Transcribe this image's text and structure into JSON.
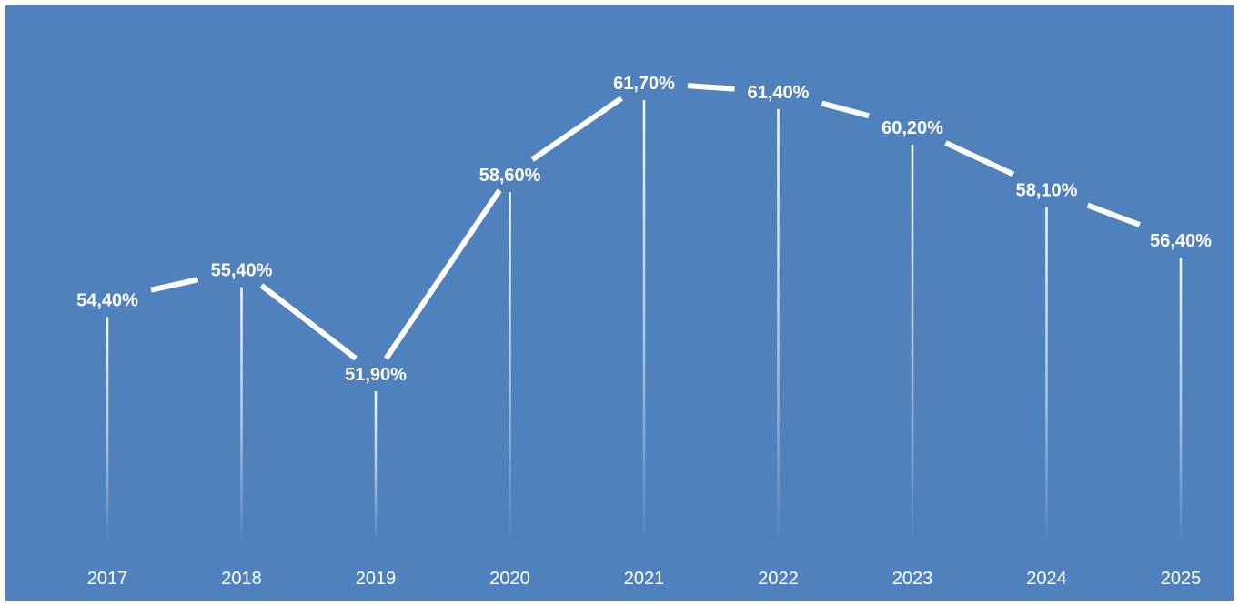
{
  "colors": {
    "background": "#4f81bd",
    "line": "#ffffff",
    "drop_lines": "#ffffff",
    "text": "#ffffff"
  },
  "chart_data": {
    "type": "line",
    "categories": [
      "2017",
      "2018",
      "2019",
      "2020",
      "2021",
      "2022",
      "2023",
      "2024",
      "2025"
    ],
    "series": [
      {
        "values": [
          54.4,
          55.4,
          51.9,
          58.6,
          61.7,
          61.4,
          60.2,
          58.1,
          56.4
        ],
        "data_labels": [
          "54,40%",
          "55,40%",
          "51,90%",
          "58,60%",
          "61,70%",
          "61,40%",
          "60,20%",
          "58,10%",
          "56,40%"
        ]
      }
    ],
    "title": "",
    "xlabel": "",
    "ylabel": "",
    "y_axis_visible": false,
    "grid": false,
    "drop_lines": true,
    "legend": "none"
  }
}
